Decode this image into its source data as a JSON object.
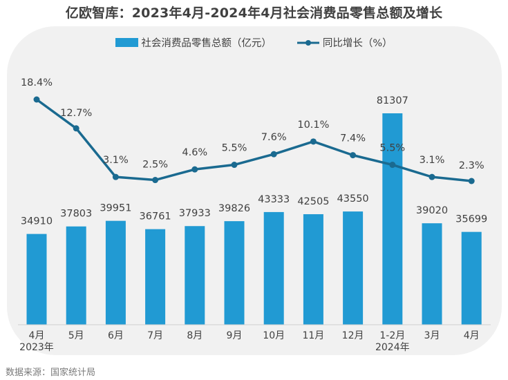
{
  "title": "亿欧智库：2023年4月-2024年4月社会消费品零售总额及增长",
  "source": "数据来源：国家统计局",
  "colors": {
    "bar": "#219ad3",
    "line": "#1a6a90",
    "panel": "#f1f1f1",
    "text": "#404040"
  },
  "chart_data": {
    "type": "bar+line",
    "title": "亿欧智库：2023年4月-2024年4月社会消费品零售总额及增长",
    "categories": [
      "4月",
      "5月",
      "6月",
      "7月",
      "8月",
      "9月",
      "10月",
      "11月",
      "12月",
      "1-2月",
      "3月",
      "4月"
    ],
    "year_labels": [
      "2023年",
      "",
      "",
      "",
      "",
      "",
      "",
      "",
      "",
      "2024年",
      "",
      ""
    ],
    "series": [
      {
        "name": "社会消费品零售总额（亿元）",
        "type": "bar",
        "values": [
          34910,
          37803,
          39951,
          36761,
          37933,
          39826,
          43333,
          42505,
          43550,
          81307,
          39020,
          35699
        ]
      },
      {
        "name": "同比增长（%）",
        "type": "line",
        "values": [
          18.4,
          12.7,
          3.1,
          2.5,
          4.6,
          5.5,
          7.6,
          10.1,
          7.4,
          5.5,
          3.1,
          2.3
        ]
      }
    ],
    "bar_labels": [
      "34910",
      "37803",
      "39951",
      "36761",
      "37933",
      "39826",
      "43333",
      "42505",
      "43550",
      "81307",
      "39020",
      "35699"
    ],
    "line_labels": [
      "18.4%",
      "12.7%",
      "3.1%",
      "2.5%",
      "4.6%",
      "5.5%",
      "7.6%",
      "10.1%",
      "7.4%",
      "5.5%",
      "3.1%",
      "2.3%"
    ],
    "legend": [
      "社会消费品零售总额（亿元）",
      "同比增长（%）"
    ],
    "legend_position": "top-center",
    "grid": false
  }
}
